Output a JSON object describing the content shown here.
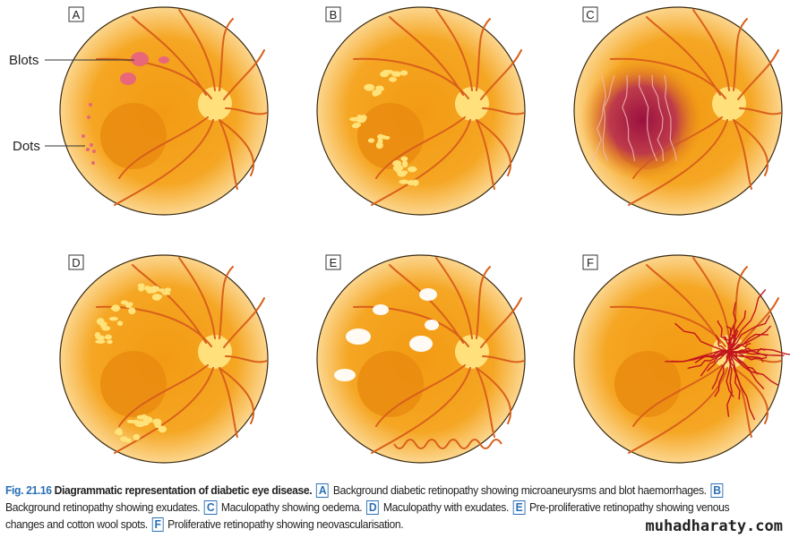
{
  "panels": [
    {
      "letter": "A",
      "features": [
        "blots",
        "dots"
      ]
    },
    {
      "letter": "B",
      "features": [
        "exudates"
      ]
    },
    {
      "letter": "C",
      "features": [
        "oedema"
      ]
    },
    {
      "letter": "D",
      "features": [
        "exudates-macula"
      ]
    },
    {
      "letter": "E",
      "features": [
        "cotton-wool",
        "venous-loops"
      ]
    },
    {
      "letter": "F",
      "features": [
        "neovascularisation"
      ]
    }
  ],
  "annotations": {
    "blots": "Blots",
    "dots": "Dots"
  },
  "caption": {
    "fig_number": "Fig. 21.16",
    "title": "Diagrammatic representation of diabetic eye disease.",
    "items": [
      {
        "letter": "A",
        "text": "Background diabetic retinopathy showing microaneurysms and blot haemorrhages."
      },
      {
        "letter": "B",
        "text": "Background retinopathy showing exudates."
      },
      {
        "letter": "C",
        "text": "Maculopathy showing oedema."
      },
      {
        "letter": "D",
        "text": "Maculopathy with exudates."
      },
      {
        "letter": "E",
        "text": "Pre-proliferative retinopathy showing venous changes and cotton wool spots."
      },
      {
        "letter": "F",
        "text": "Proliferative retinopathy showing neovascularisation."
      }
    ]
  },
  "watermark": "muhadharaty.com",
  "colors": {
    "fundus": "#f5a623",
    "fundus_edge": "#fbd38a",
    "vessel": "#d9601a",
    "disc": "#ffe07a",
    "macula": "#e8890f",
    "blot": "#e8677a",
    "exudate": "#ffe27a",
    "oedema": "#a0184a",
    "cotton": "#ffffff",
    "neovessel": "#c4161c",
    "caption_accent": "#2a6fb5"
  }
}
